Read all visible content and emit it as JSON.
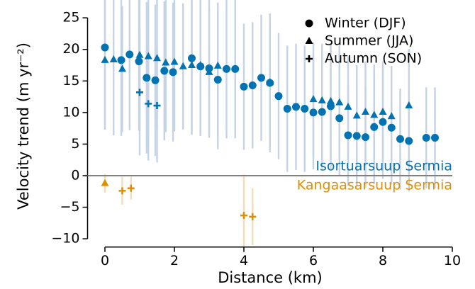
{
  "chart_data": {
    "type": "scatter",
    "x_label": "Distance (km)",
    "y_label": "Velocity trend (m yr⁻²)",
    "xlim": [
      -0.5,
      10
    ],
    "ylim": [
      -11.3,
      26.5
    ],
    "xticks": [
      0,
      2,
      4,
      6,
      8,
      10
    ],
    "yticks": [
      {
        "value": -10,
        "label": "−10"
      },
      {
        "value": -5,
        "label": "−5"
      },
      0,
      5,
      10,
      15,
      20,
      25
    ],
    "reference_line": 0,
    "legend_position": "upper right",
    "groups": [
      {
        "label": "Isortuarsuup Sermia",
        "color": "#0173b2",
        "error_color": "#c6d3e6",
        "series": [
          {
            "name": "Winter (DJF)",
            "marker": "circle",
            "x": [
              0,
              0.47,
              0.71,
              0.98,
              1.2,
              1.45,
              1.71,
              1.96,
              2.5,
              2.75,
              3.0,
              3.25,
              3.5,
              3.75,
              4.0,
              4.25,
              4.5,
              4.75,
              5.0,
              5.25,
              5.5,
              5.75,
              6.0,
              6.25,
              6.5,
              6.75,
              7.0,
              7.25,
              7.5,
              7.75,
              8.0,
              8.25,
              8.5,
              8.75,
              9.25,
              9.5
            ],
            "values": [
              20.3,
              18.3,
              19.2,
              18.1,
              15.5,
              15.1,
              16.6,
              16.4,
              18.6,
              17.3,
              17.0,
              15.2,
              16.9,
              16.9,
              14.1,
              14.3,
              15.5,
              14.7,
              12.6,
              10.6,
              10.9,
              10.6,
              10.0,
              10.1,
              11.0,
              9.1,
              6.4,
              6.3,
              6.1,
              7.7,
              8.5,
              7.6,
              5.8,
              5.5,
              6.0,
              6.0
            ],
            "errors": [
              13,
              12,
              12,
              11,
              12,
              12,
              11,
              11,
              12,
              11,
              11,
              11,
              11,
              11,
              10,
              10,
              10,
              11,
              10,
              10,
              10,
              10,
              9,
              9,
              10,
              9,
              8,
              8,
              8,
              9,
              9,
              9,
              8,
              8,
              8,
              8
            ]
          },
          {
            "name": "Summer (JJA)",
            "marker": "triangle",
            "x": [
              0,
              0.25,
              0.5,
              1.0,
              1.25,
              1.5,
              1.75,
              2.0,
              2.25,
              2.5,
              2.75,
              3.0,
              3.25,
              4.75,
              6.0,
              6.25,
              6.5,
              6.75,
              7.0,
              7.25,
              7.5,
              7.75,
              8.0,
              8.25,
              8.75
            ],
            "values": [
              18.3,
              18.4,
              16.9,
              19.1,
              18.9,
              18.6,
              17.9,
              18.0,
              17.3,
              17.5,
              17.5,
              16.4,
              17.4,
              14.8,
              12.1,
              11.9,
              11.8,
              11.6,
              10.9,
              9.5,
              10.1,
              9.6,
              10.1,
              9.4,
              11.1
            ],
            "errors": [
              11,
              12,
              10,
              12,
              12,
              11,
              11,
              11,
              10,
              11,
              11,
              10,
              10,
              9,
              9,
              9,
              9,
              9,
              8,
              8,
              8,
              8,
              8,
              8,
              9
            ]
          },
          {
            "name": "Autumn (SON)",
            "marker": "plus",
            "x": [
              1.0,
              1.25,
              1.5
            ],
            "values": [
              13.2,
              11.4,
              11.1
            ],
            "errors": [
              10,
              9,
              9
            ]
          }
        ]
      },
      {
        "label": "Kangaasarsuup Sermia",
        "color": "#de8f05",
        "error_color": "#f8dcb5",
        "series": [
          {
            "marker": "triangle",
            "x": [
              0
            ],
            "values": [
              -1.2
            ],
            "errors": [
              1.5
            ]
          },
          {
            "marker": "plus",
            "x": [
              0.5,
              0.75,
              4.0,
              4.25
            ],
            "values": [
              -2.4,
              -2.0,
              -6.3,
              -6.5
            ],
            "errors": [
              2.2,
              1.8,
              6.5,
              4.5
            ]
          }
        ]
      }
    ]
  }
}
